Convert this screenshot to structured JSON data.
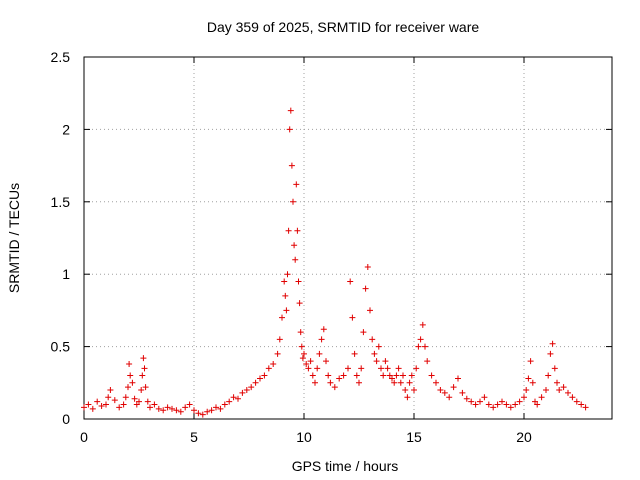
{
  "chart_data": {
    "type": "scatter",
    "title": "Day 359 of 2025, SRMTID for receiver ware",
    "xlabel": "GPS time / hours",
    "ylabel": "SRMTID / TECUs",
    "xlim": [
      0,
      24
    ],
    "ylim": [
      0,
      2.5
    ],
    "x_ticks": [
      0,
      5,
      10,
      15,
      20
    ],
    "x_tick_labels": [
      "0",
      "5",
      "10",
      "15",
      "20"
    ],
    "y_ticks": [
      0,
      0.5,
      1,
      1.5,
      2,
      2.5
    ],
    "y_tick_labels": [
      "0",
      "0.5",
      "1",
      "1.5",
      "2",
      "2.5"
    ],
    "grid": true,
    "marker": "+",
    "color": "#e00000",
    "series": [
      {
        "name": "ware",
        "x": [
          0.0,
          0.2,
          0.4,
          0.6,
          0.8,
          1.0,
          1.1,
          1.2,
          1.4,
          1.6,
          1.8,
          1.9,
          2.0,
          2.05,
          2.1,
          2.2,
          2.3,
          2.4,
          2.5,
          2.6,
          2.65,
          2.7,
          2.75,
          2.8,
          2.9,
          3.0,
          3.2,
          3.4,
          3.6,
          3.8,
          4.0,
          4.2,
          4.4,
          4.6,
          4.8,
          5.0,
          5.2,
          5.4,
          5.6,
          5.8,
          6.0,
          6.2,
          6.4,
          6.6,
          6.8,
          7.0,
          7.2,
          7.4,
          7.6,
          7.8,
          8.0,
          8.2,
          8.4,
          8.6,
          8.8,
          8.9,
          9.0,
          9.1,
          9.15,
          9.2,
          9.25,
          9.3,
          9.35,
          9.4,
          9.45,
          9.5,
          9.55,
          9.6,
          9.65,
          9.7,
          9.75,
          9.8,
          9.85,
          9.9,
          9.95,
          10.0,
          10.1,
          10.2,
          10.3,
          10.4,
          10.5,
          10.6,
          10.7,
          10.8,
          10.9,
          11.0,
          11.1,
          11.2,
          11.4,
          11.6,
          11.8,
          12.0,
          12.1,
          12.2,
          12.3,
          12.4,
          12.5,
          12.6,
          12.7,
          12.8,
          12.9,
          13.0,
          13.1,
          13.2,
          13.3,
          13.4,
          13.5,
          13.6,
          13.7,
          13.8,
          13.9,
          14.0,
          14.1,
          14.2,
          14.3,
          14.4,
          14.5,
          14.6,
          14.7,
          14.8,
          14.9,
          15.0,
          15.1,
          15.2,
          15.3,
          15.4,
          15.5,
          15.6,
          15.8,
          16.0,
          16.2,
          16.4,
          16.6,
          16.8,
          17.0,
          17.2,
          17.4,
          17.6,
          17.8,
          18.0,
          18.2,
          18.4,
          18.6,
          18.8,
          19.0,
          19.2,
          19.4,
          19.6,
          19.8,
          20.0,
          20.1,
          20.2,
          20.3,
          20.4,
          20.5,
          20.6,
          20.8,
          21.0,
          21.1,
          21.2,
          21.3,
          21.4,
          21.5,
          21.6,
          21.8,
          22.0,
          22.2,
          22.4,
          22.6,
          22.8
        ],
        "y": [
          0.08,
          0.1,
          0.07,
          0.12,
          0.09,
          0.1,
          0.15,
          0.2,
          0.13,
          0.08,
          0.1,
          0.15,
          0.22,
          0.38,
          0.3,
          0.25,
          0.14,
          0.1,
          0.12,
          0.2,
          0.3,
          0.42,
          0.35,
          0.22,
          0.12,
          0.08,
          0.1,
          0.07,
          0.06,
          0.08,
          0.07,
          0.06,
          0.05,
          0.08,
          0.1,
          0.06,
          0.04,
          0.03,
          0.05,
          0.06,
          0.08,
          0.07,
          0.1,
          0.12,
          0.15,
          0.14,
          0.18,
          0.2,
          0.22,
          0.25,
          0.28,
          0.3,
          0.35,
          0.38,
          0.45,
          0.55,
          0.7,
          0.95,
          0.85,
          0.75,
          1.0,
          1.3,
          2.0,
          2.13,
          1.75,
          1.5,
          1.2,
          1.1,
          1.62,
          1.3,
          0.95,
          0.8,
          0.6,
          0.5,
          0.42,
          0.45,
          0.38,
          0.35,
          0.4,
          0.3,
          0.25,
          0.35,
          0.45,
          0.55,
          0.62,
          0.4,
          0.3,
          0.25,
          0.22,
          0.28,
          0.3,
          0.35,
          0.95,
          0.7,
          0.45,
          0.3,
          0.25,
          0.35,
          0.6,
          0.9,
          1.05,
          0.75,
          0.55,
          0.45,
          0.4,
          0.5,
          0.35,
          0.3,
          0.4,
          0.35,
          0.3,
          0.28,
          0.25,
          0.3,
          0.35,
          0.25,
          0.3,
          0.2,
          0.15,
          0.25,
          0.3,
          0.2,
          0.35,
          0.5,
          0.55,
          0.65,
          0.5,
          0.4,
          0.3,
          0.25,
          0.2,
          0.18,
          0.15,
          0.22,
          0.28,
          0.18,
          0.14,
          0.12,
          0.1,
          0.12,
          0.15,
          0.1,
          0.08,
          0.1,
          0.12,
          0.1,
          0.08,
          0.1,
          0.12,
          0.15,
          0.2,
          0.28,
          0.4,
          0.25,
          0.12,
          0.1,
          0.15,
          0.2,
          0.3,
          0.45,
          0.52,
          0.35,
          0.25,
          0.2,
          0.22,
          0.18,
          0.15,
          0.12,
          0.1,
          0.08
        ]
      }
    ]
  }
}
